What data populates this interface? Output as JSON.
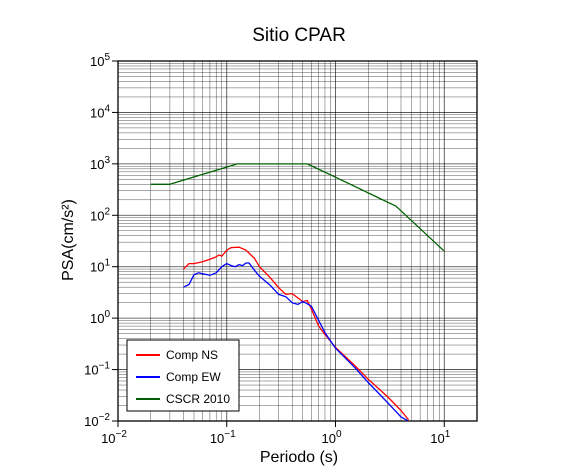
{
  "chart_data": {
    "type": "line",
    "title": "Sitio CPAR",
    "xlabel": "Periodo (s)",
    "ylabel": "PSA(cm/s²)",
    "xscale": "log",
    "yscale": "log",
    "xlim": [
      0.01,
      20
    ],
    "ylim": [
      0.01,
      100000
    ],
    "grid": true,
    "legend_position": "bottom-left",
    "x_tick_labels": [
      {
        "base": "10",
        "exp": "−2",
        "value": 0.01
      },
      {
        "base": "10",
        "exp": "−1",
        "value": 0.1
      },
      {
        "base": "10",
        "exp": "0",
        "value": 1
      },
      {
        "base": "10",
        "exp": "1",
        "value": 10
      }
    ],
    "y_tick_labels": [
      {
        "base": "10",
        "exp": "−2",
        "value": 0.01
      },
      {
        "base": "10",
        "exp": "−1",
        "value": 0.1
      },
      {
        "base": "10",
        "exp": "0",
        "value": 1
      },
      {
        "base": "10",
        "exp": "1",
        "value": 10
      },
      {
        "base": "10",
        "exp": "2",
        "value": 100
      },
      {
        "base": "10",
        "exp": "3",
        "value": 1000
      },
      {
        "base": "10",
        "exp": "4",
        "value": 10000
      },
      {
        "base": "10",
        "exp": "5",
        "value": 100000
      }
    ],
    "series": [
      {
        "name": "Comp NS",
        "color": "#ff0000",
        "points": [
          [
            0.04,
            9
          ],
          [
            0.045,
            11.5
          ],
          [
            0.05,
            11.5
          ],
          [
            0.06,
            12.5
          ],
          [
            0.07,
            14
          ],
          [
            0.08,
            15.5
          ],
          [
            0.085,
            17
          ],
          [
            0.09,
            16
          ],
          [
            0.1,
            21
          ],
          [
            0.11,
            23.5
          ],
          [
            0.13,
            24
          ],
          [
            0.15,
            21
          ],
          [
            0.18,
            14.5
          ],
          [
            0.2,
            10
          ],
          [
            0.25,
            6.2
          ],
          [
            0.3,
            3.9
          ],
          [
            0.35,
            2.9
          ],
          [
            0.4,
            3.0
          ],
          [
            0.5,
            2.1
          ],
          [
            0.55,
            2.2
          ],
          [
            0.6,
            1.5
          ],
          [
            0.7,
            0.7
          ],
          [
            0.8,
            0.48
          ],
          [
            1.0,
            0.27
          ],
          [
            1.5,
            0.12
          ],
          [
            2.0,
            0.065
          ],
          [
            3.0,
            0.03
          ],
          [
            4.0,
            0.016
          ],
          [
            4.7,
            0.0105
          ]
        ]
      },
      {
        "name": "Comp EW",
        "color": "#0000ff",
        "points": [
          [
            0.04,
            4
          ],
          [
            0.045,
            4.5
          ],
          [
            0.05,
            7
          ],
          [
            0.055,
            7.6
          ],
          [
            0.06,
            7.3
          ],
          [
            0.07,
            6.8
          ],
          [
            0.08,
            7.6
          ],
          [
            0.09,
            10
          ],
          [
            0.1,
            11.5
          ],
          [
            0.11,
            10.5
          ],
          [
            0.12,
            10
          ],
          [
            0.13,
            11
          ],
          [
            0.14,
            10.5
          ],
          [
            0.15,
            11.8
          ],
          [
            0.16,
            11.8
          ],
          [
            0.18,
            8.5
          ],
          [
            0.2,
            6.5
          ],
          [
            0.25,
            4.4
          ],
          [
            0.3,
            2.9
          ],
          [
            0.35,
            2.6
          ],
          [
            0.4,
            2.0
          ],
          [
            0.45,
            1.85
          ],
          [
            0.5,
            2.1
          ],
          [
            0.55,
            1.9
          ],
          [
            0.6,
            1.7
          ],
          [
            0.7,
            0.9
          ],
          [
            0.8,
            0.52
          ],
          [
            1.0,
            0.26
          ],
          [
            1.5,
            0.11
          ],
          [
            2.0,
            0.056
          ],
          [
            3.0,
            0.023
          ],
          [
            4.0,
            0.012
          ],
          [
            4.6,
            0.0102
          ]
        ]
      },
      {
        "name": "CSCR 2010",
        "color": "#006000",
        "points": [
          [
            0.02,
            400
          ],
          [
            0.03,
            400
          ],
          [
            0.125,
            1000
          ],
          [
            0.55,
            1000
          ],
          [
            1.0,
            550
          ],
          [
            3.6,
            150
          ],
          [
            10,
            20
          ]
        ]
      }
    ]
  }
}
